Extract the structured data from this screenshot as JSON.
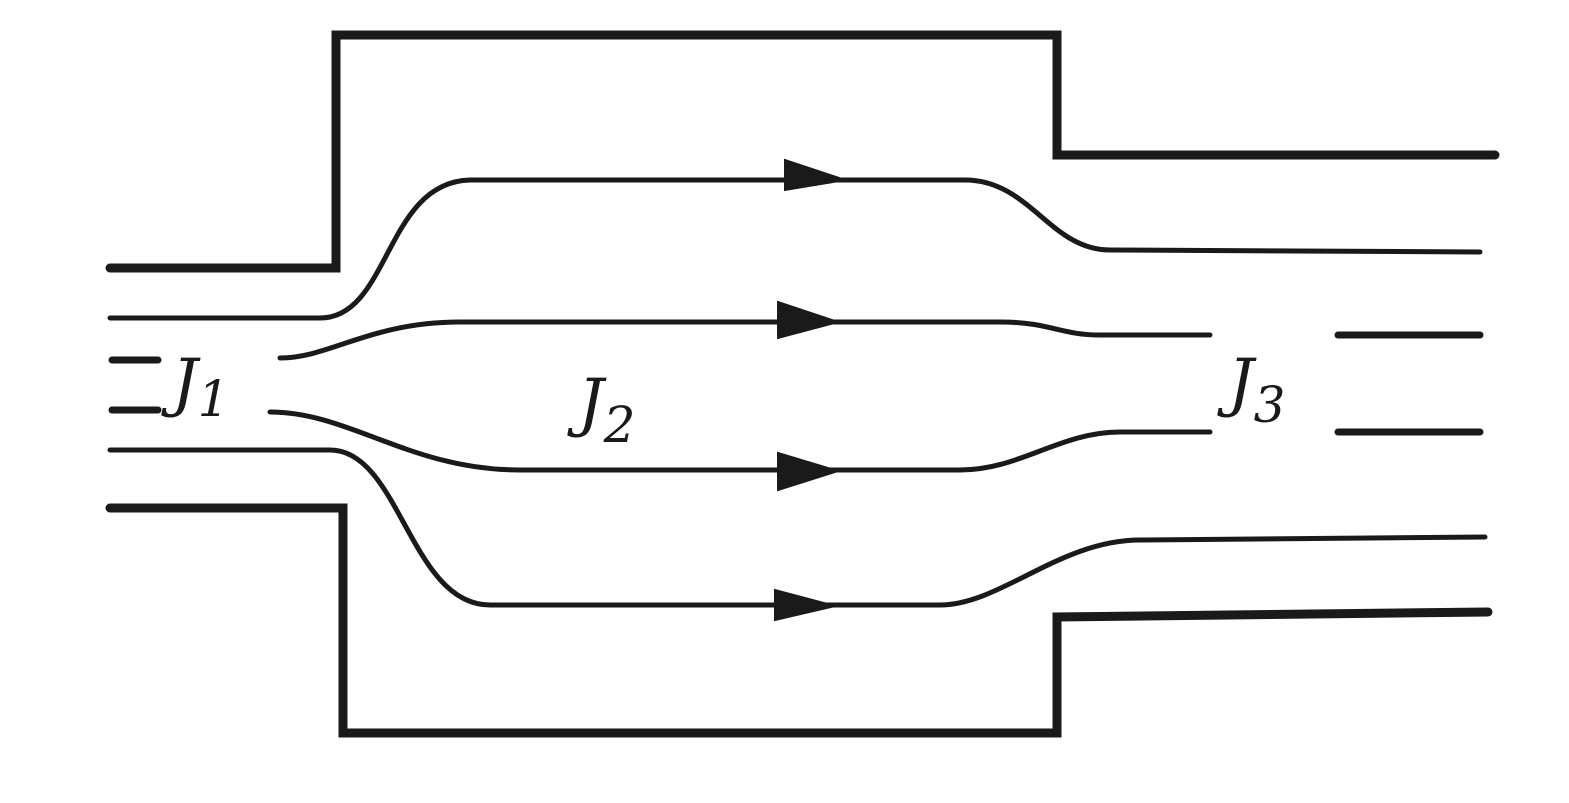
{
  "labels": {
    "j1": {
      "main": "J",
      "sub": "1"
    },
    "j2": {
      "main": "J",
      "sub": "2"
    },
    "j3": {
      "main": "J",
      "sub": "3"
    }
  }
}
